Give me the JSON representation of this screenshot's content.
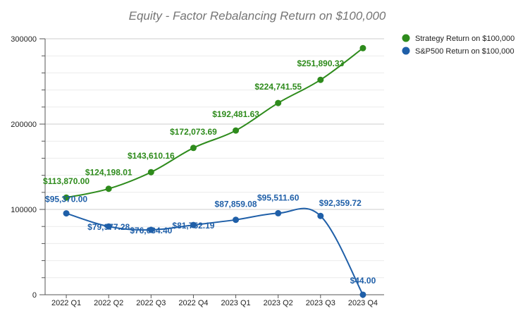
{
  "chart_data": {
    "type": "line",
    "title": "Equity - Factor Rebalancing Return on $100,000",
    "categories": [
      "2022 Q1",
      "2022 Q2",
      "2022 Q3",
      "2022 Q4",
      "2023 Q1",
      "2023 Q2",
      "2023 Q3",
      "2023 Q4"
    ],
    "ylim": [
      0,
      300000
    ],
    "yticks": [
      0,
      100000,
      200000,
      300000
    ],
    "ytick_labels": [
      "0",
      "100000",
      "200000",
      "300000"
    ],
    "grid": true,
    "legend_position": "right",
    "series": [
      {
        "name": "Strategy Return on $100,000",
        "color": "#2e8b1c",
        "values": [
          113870.0,
          124198.01,
          143610.16,
          172073.69,
          192481.63,
          224741.55,
          251890.33,
          289000
        ],
        "labels": [
          "$113,870.00",
          "$124,198.01",
          "$143,610.16",
          "$172,073.69",
          "$192,481.63",
          "$224,741.55",
          "$251,890.33",
          ""
        ]
      },
      {
        "name": "S&P500 Return on $100,000",
        "color": "#1f5fa8",
        "values": [
          95370.0,
          79977.28,
          76034.4,
          81752.19,
          87859.08,
          95511.6,
          92359.72,
          44.0
        ],
        "labels": [
          "$95,370.00",
          "$79,977.28",
          "$76,034.40",
          "$81,752.19",
          "$87,859.08",
          "$95,511.60",
          "$92,359.72",
          "$44.00"
        ]
      }
    ]
  }
}
